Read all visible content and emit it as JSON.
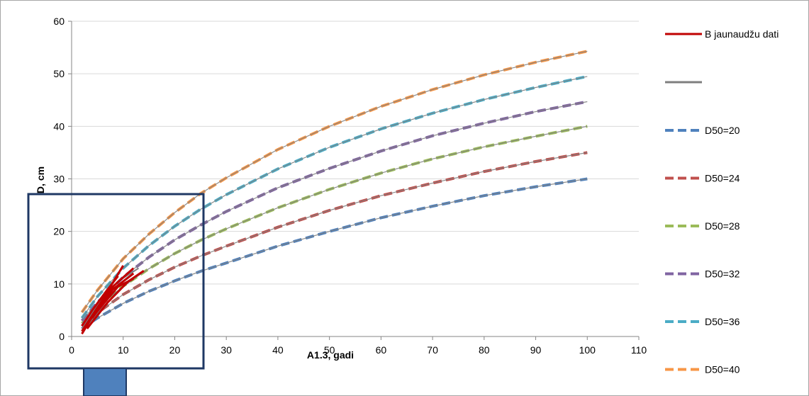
{
  "chart_data": {
    "type": "line",
    "title": "",
    "xlabel": "A1.3, gadi",
    "ylabel": "D, cm",
    "xlim": [
      0,
      110
    ],
    "ylim": [
      0,
      60
    ],
    "xticks": [
      0,
      10,
      20,
      30,
      40,
      50,
      60,
      70,
      80,
      90,
      100,
      110
    ],
    "yticks": [
      0,
      10,
      20,
      30,
      40,
      50,
      60
    ],
    "grid": "horizontal",
    "legend_position": "right",
    "series": [
      {
        "name": "D50=20",
        "color": "#4F81BD",
        "style": "dashed",
        "x": [
          2,
          5,
          10,
          15,
          20,
          25,
          30,
          40,
          50,
          60,
          70,
          80,
          90,
          100
        ],
        "y": [
          1.5,
          3.5,
          6.3,
          8.6,
          10.6,
          12.4,
          14.0,
          17.2,
          20.0,
          22.6,
          24.8,
          26.8,
          28.5,
          30.0
        ]
      },
      {
        "name": "D50=24",
        "color": "#C0504D",
        "style": "dashed",
        "x": [
          2,
          5,
          10,
          15,
          20,
          25,
          30,
          40,
          50,
          60,
          70,
          80,
          90,
          100
        ],
        "y": [
          2.0,
          4.5,
          8.0,
          10.8,
          13.2,
          15.3,
          17.2,
          20.8,
          24.0,
          26.8,
          29.2,
          31.4,
          33.3,
          35.0
        ]
      },
      {
        "name": "D50=28",
        "color": "#9BBB59",
        "style": "dashed",
        "x": [
          2,
          5,
          10,
          15,
          20,
          25,
          30,
          40,
          50,
          60,
          70,
          80,
          90,
          100
        ],
        "y": [
          2.5,
          5.5,
          9.6,
          12.9,
          15.8,
          18.3,
          20.5,
          24.5,
          28.0,
          31.1,
          33.8,
          36.1,
          38.1,
          40.0
        ]
      },
      {
        "name": "D50=32",
        "color": "#8064A2",
        "style": "dashed",
        "x": [
          2,
          5,
          10,
          15,
          20,
          25,
          30,
          40,
          50,
          60,
          70,
          80,
          90,
          100
        ],
        "y": [
          3.0,
          6.5,
          11.3,
          15.1,
          18.4,
          21.2,
          23.8,
          28.3,
          32.0,
          35.3,
          38.2,
          40.6,
          42.8,
          44.7
        ]
      },
      {
        "name": "D50=36",
        "color": "#4BACC6",
        "style": "dashed",
        "x": [
          2,
          5,
          10,
          15,
          20,
          25,
          30,
          40,
          50,
          60,
          70,
          80,
          90,
          100
        ],
        "y": [
          3.5,
          7.6,
          13.0,
          17.3,
          21.0,
          24.2,
          27.0,
          31.9,
          36.0,
          39.5,
          42.5,
          45.1,
          47.4,
          49.5
        ]
      },
      {
        "name": "D50=40",
        "color": "#F79646",
        "style": "dashed",
        "x": [
          2,
          5,
          10,
          15,
          20,
          25,
          30,
          40,
          50,
          60,
          70,
          80,
          90,
          100
        ],
        "y": [
          4.6,
          8.8,
          14.8,
          19.5,
          23.6,
          27.2,
          30.2,
          35.6,
          40.0,
          43.8,
          47.0,
          49.8,
          52.2,
          54.3
        ]
      }
    ],
    "observed": {
      "name": "B jaunaudžu dati",
      "color": "#C00000",
      "lines": [
        {
          "x": [
            2,
            6,
            10
          ],
          "y": [
            0.5,
            7.0,
            13.5
          ]
        },
        {
          "x": [
            2,
            5,
            8,
            12
          ],
          "y": [
            1.0,
            5.5,
            9.5,
            13.0
          ]
        },
        {
          "x": [
            3,
            7,
            11,
            14
          ],
          "y": [
            1.5,
            6.5,
            10.5,
            12.5
          ]
        },
        {
          "x": [
            2,
            4,
            7,
            9
          ],
          "y": [
            2.0,
            5.0,
            9.0,
            11.5
          ]
        },
        {
          "x": [
            4,
            8,
            12
          ],
          "y": [
            3.5,
            9.0,
            12.0
          ]
        },
        {
          "x": [
            3,
            6,
            9,
            12
          ],
          "y": [
            2.5,
            6.0,
            9.5,
            11.0
          ]
        }
      ]
    },
    "second_legend_entry": {
      "name": "",
      "color": "#7F7F7F"
    },
    "gray_lines": [
      {
        "x": [
          2,
          6,
          10,
          14
        ],
        "y": [
          1.0,
          5.5,
          9.5,
          12.5
        ]
      },
      {
        "x": [
          2,
          5,
          9,
          13
        ],
        "y": [
          1.5,
          6.0,
          10.5,
          13.0
        ]
      }
    ]
  }
}
